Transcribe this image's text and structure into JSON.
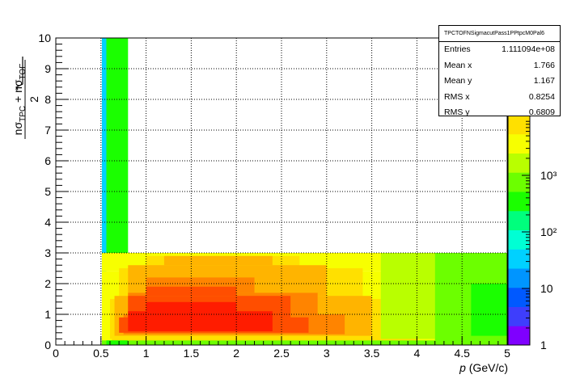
{
  "chart_data": {
    "type": "heatmap",
    "xlabel_italic": "p",
    "xlabel_rest": " (GeV/c)",
    "ylabel_parts": {
      "n1": "nσ",
      "s1": "TPC",
      "plus": " + ",
      "n2": "nσ",
      "s2": "TOF",
      "den": "2"
    },
    "xlim": [
      0,
      5
    ],
    "ylim": [
      0,
      10
    ],
    "x_ticks": [
      "0",
      "0.5",
      "1",
      "1.5",
      "2",
      "2.5",
      "3",
      "3.5",
      "4",
      "4.5",
      "5"
    ],
    "y_ticks": [
      "0",
      "1",
      "2",
      "3",
      "4",
      "5",
      "6",
      "7",
      "8",
      "9",
      "10"
    ],
    "grid": true,
    "z_scale": "log",
    "z_ticks": [
      "1",
      "10",
      "10²",
      "10³"
    ],
    "colorscale": [
      "#7f00ff",
      "#3e3efc",
      "#0059ff",
      "#0095ff",
      "#00d1ff",
      "#00ffd4",
      "#00ff7d",
      "#1bff00",
      "#6cff00",
      "#b9ff00",
      "#f7ff00",
      "#ffe000",
      "#ffb400",
      "#ff8400",
      "#ff4e00",
      "#ff1c00"
    ],
    "description_levels": "cells: x0, x1, y0, y1, level (0-15 index into colorscale)",
    "cells": [
      [
        0.51,
        0.56,
        1.5,
        10.0,
        4
      ],
      [
        0.56,
        0.8,
        3.0,
        10.0,
        7
      ],
      [
        0.51,
        5.0,
        2.4,
        3.0,
        10
      ],
      [
        0.51,
        5.0,
        0.0,
        2.4,
        10
      ],
      [
        1.0,
        2.7,
        2.5,
        2.9,
        11
      ],
      [
        0.7,
        3.4,
        1.5,
        2.5,
        11
      ],
      [
        0.6,
        3.8,
        0.2,
        1.5,
        11
      ],
      [
        0.62,
        4.0,
        0.0,
        0.6,
        11
      ],
      [
        1.2,
        2.4,
        2.6,
        2.9,
        12
      ],
      [
        0.8,
        3.0,
        1.6,
        2.6,
        12
      ],
      [
        0.65,
        3.5,
        0.3,
        1.6,
        12
      ],
      [
        1.0,
        2.2,
        1.7,
        2.2,
        13
      ],
      [
        0.8,
        2.9,
        1.0,
        1.7,
        13
      ],
      [
        0.75,
        3.2,
        0.35,
        1.0,
        13
      ],
      [
        1.0,
        2.0,
        1.6,
        1.9,
        14
      ],
      [
        0.8,
        2.6,
        0.5,
        1.6,
        14
      ],
      [
        0.7,
        2.8,
        0.4,
        0.9,
        14
      ],
      [
        1.0,
        2.0,
        1.0,
        1.4,
        15
      ],
      [
        0.8,
        2.4,
        0.45,
        1.1,
        15
      ],
      [
        3.6,
        4.2,
        0.2,
        3.0,
        9
      ],
      [
        4.2,
        5.0,
        0.0,
        3.0,
        8
      ],
      [
        4.6,
        5.0,
        0.3,
        2.0,
        7
      ],
      [
        0.51,
        5.0,
        0.0,
        0.15,
        8
      ],
      [
        0.56,
        0.8,
        0.0,
        0.15,
        7
      ]
    ]
  },
  "stats": {
    "title": "TPCTOFNSigmacutPass1PPtpcM0Pal6",
    "rows": [
      {
        "label": "Entries",
        "value": "1.111094e+08"
      },
      {
        "label": "Mean x",
        "value": "1.766"
      },
      {
        "label": "Mean y",
        "value": "1.167"
      },
      {
        "label": "RMS x",
        "value": "0.8254"
      },
      {
        "label": "RMS y",
        "value": "0.6809"
      }
    ]
  }
}
